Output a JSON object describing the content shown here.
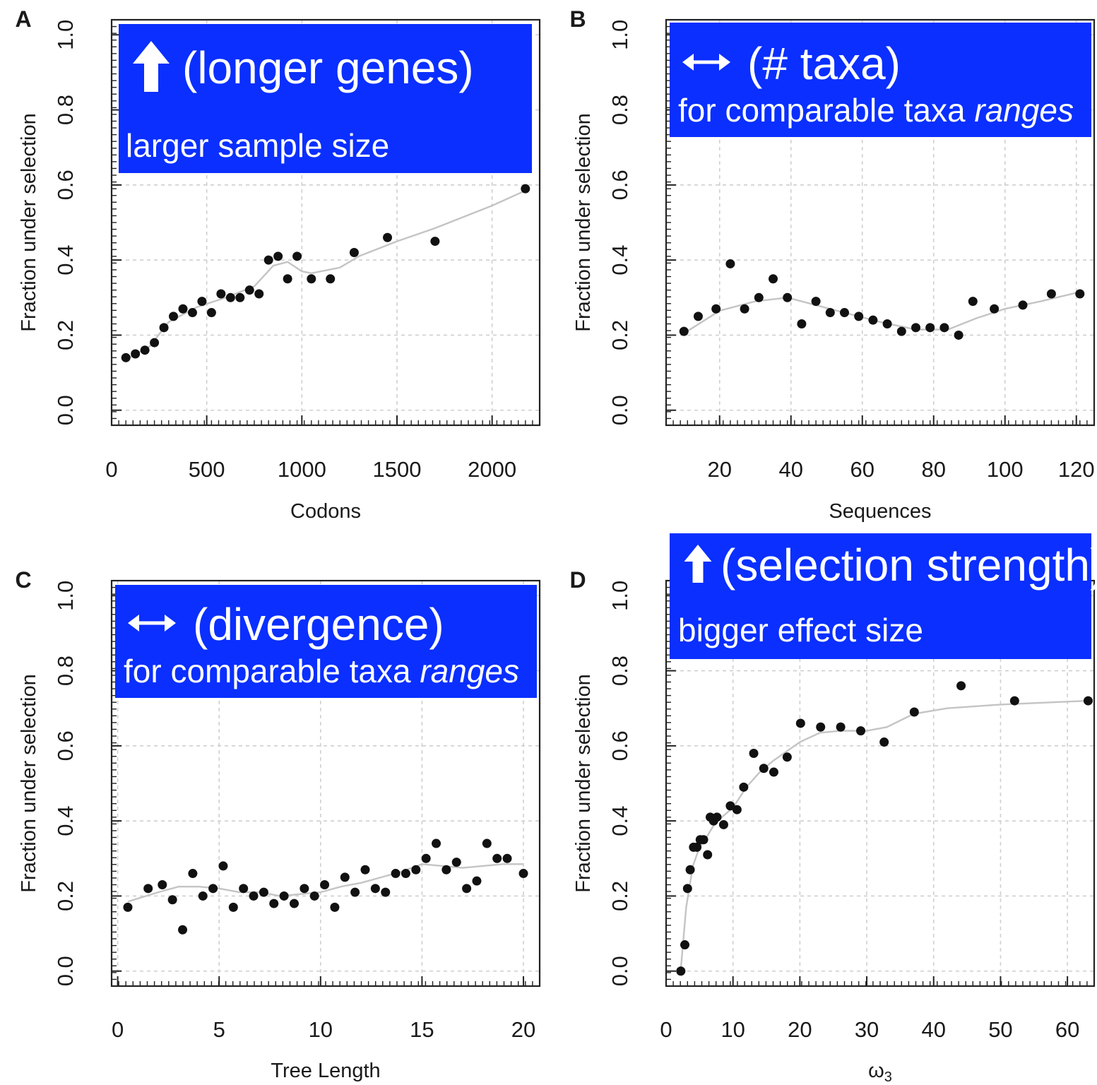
{
  "chart_data": [
    {
      "panel": "A",
      "type": "scatter",
      "xlabel": "Codons",
      "ylabel": "Fraction under selection",
      "xlim": [
        0,
        2250
      ],
      "ylim": [
        -0.04,
        1.04
      ],
      "xticks": [
        0,
        500,
        1000,
        1500,
        2000
      ],
      "yticks": [
        0.0,
        0.2,
        0.4,
        0.6,
        0.8,
        1.0
      ],
      "ytick_labels": [
        "0.0",
        "0.2",
        "0.4",
        "0.6",
        "0.8",
        "1.0"
      ],
      "grid": true,
      "banner": {
        "arrow": "up",
        "line1": "(longer genes)",
        "line2": "larger sample size",
        "color": "#0a2fff"
      },
      "points": [
        [
          75,
          0.14
        ],
        [
          125,
          0.15
        ],
        [
          175,
          0.16
        ],
        [
          225,
          0.18
        ],
        [
          275,
          0.22
        ],
        [
          325,
          0.25
        ],
        [
          375,
          0.27
        ],
        [
          425,
          0.26
        ],
        [
          475,
          0.29
        ],
        [
          525,
          0.26
        ],
        [
          575,
          0.31
        ],
        [
          625,
          0.3
        ],
        [
          675,
          0.3
        ],
        [
          725,
          0.32
        ],
        [
          775,
          0.31
        ],
        [
          825,
          0.4
        ],
        [
          875,
          0.41
        ],
        [
          925,
          0.35
        ],
        [
          975,
          0.41
        ],
        [
          1050,
          0.35
        ],
        [
          1150,
          0.35
        ],
        [
          1275,
          0.42
        ],
        [
          1450,
          0.46
        ],
        [
          1700,
          0.45
        ],
        [
          2175,
          0.59
        ]
      ],
      "smooth": [
        [
          75,
          0.135
        ],
        [
          200,
          0.17
        ],
        [
          300,
          0.235
        ],
        [
          450,
          0.275
        ],
        [
          600,
          0.3
        ],
        [
          750,
          0.33
        ],
        [
          850,
          0.385
        ],
        [
          925,
          0.395
        ],
        [
          1000,
          0.37
        ],
        [
          1050,
          0.365
        ],
        [
          1200,
          0.38
        ],
        [
          1300,
          0.41
        ],
        [
          1500,
          0.45
        ],
        [
          1700,
          0.485
        ],
        [
          2000,
          0.545
        ],
        [
          2175,
          0.585
        ]
      ]
    },
    {
      "panel": "B",
      "type": "scatter",
      "xlabel": "Sequences",
      "ylabel": "Fraction under selection",
      "xlim": [
        5,
        125
      ],
      "ylim": [
        -0.04,
        1.04
      ],
      "xticks": [
        20,
        40,
        60,
        80,
        100,
        120
      ],
      "yticks": [
        0.0,
        0.2,
        0.4,
        0.6,
        0.8,
        1.0
      ],
      "ytick_labels": [
        "0.0",
        "0.2",
        "0.4",
        "0.6",
        "0.8",
        "1.0"
      ],
      "grid": true,
      "banner": {
        "arrow": "both",
        "line1": "(# taxa)",
        "line2_plain": "for comparable taxa ",
        "line2_italic": "ranges",
        "color": "#0a2fff"
      },
      "points": [
        [
          10,
          0.21
        ],
        [
          14,
          0.25
        ],
        [
          19,
          0.27
        ],
        [
          23,
          0.39
        ],
        [
          27,
          0.27
        ],
        [
          31,
          0.3
        ],
        [
          35,
          0.35
        ],
        [
          39,
          0.3
        ],
        [
          43,
          0.23
        ],
        [
          47,
          0.29
        ],
        [
          51,
          0.26
        ],
        [
          55,
          0.26
        ],
        [
          59,
          0.25
        ],
        [
          63,
          0.24
        ],
        [
          67,
          0.23
        ],
        [
          71,
          0.21
        ],
        [
          75,
          0.22
        ],
        [
          79,
          0.22
        ],
        [
          83,
          0.22
        ],
        [
          87,
          0.2
        ],
        [
          91,
          0.29
        ],
        [
          97,
          0.27
        ],
        [
          105,
          0.28
        ],
        [
          113,
          0.31
        ],
        [
          121,
          0.31
        ]
      ],
      "smooth": [
        [
          10,
          0.205
        ],
        [
          20,
          0.265
        ],
        [
          30,
          0.29
        ],
        [
          39,
          0.3
        ],
        [
          45,
          0.285
        ],
        [
          55,
          0.26
        ],
        [
          65,
          0.235
        ],
        [
          75,
          0.215
        ],
        [
          84,
          0.215
        ],
        [
          92,
          0.245
        ],
        [
          100,
          0.27
        ],
        [
          110,
          0.29
        ],
        [
          121,
          0.315
        ]
      ]
    },
    {
      "panel": "C",
      "type": "scatter",
      "xlabel": "Tree Length",
      "ylabel": "Fraction under selection",
      "xlim": [
        -0.3,
        20.8
      ],
      "ylim": [
        -0.04,
        1.04
      ],
      "xticks": [
        0,
        5,
        10,
        15,
        20
      ],
      "yticks": [
        0.0,
        0.2,
        0.4,
        0.6,
        0.8,
        1.0
      ],
      "ytick_labels": [
        "0.0",
        "0.2",
        "0.4",
        "0.6",
        "0.8",
        "1.0"
      ],
      "grid": true,
      "banner": {
        "arrow": "both",
        "line1": "(divergence)",
        "line2_plain": "for comparable taxa ",
        "line2_italic": "ranges",
        "color": "#0a2fff"
      },
      "points": [
        [
          0.5,
          0.17
        ],
        [
          1.5,
          0.22
        ],
        [
          2.2,
          0.23
        ],
        [
          2.7,
          0.19
        ],
        [
          3.2,
          0.11
        ],
        [
          3.7,
          0.26
        ],
        [
          4.2,
          0.2
        ],
        [
          4.7,
          0.22
        ],
        [
          5.2,
          0.28
        ],
        [
          5.7,
          0.17
        ],
        [
          6.2,
          0.22
        ],
        [
          6.7,
          0.2
        ],
        [
          7.2,
          0.21
        ],
        [
          7.7,
          0.18
        ],
        [
          8.2,
          0.2
        ],
        [
          8.7,
          0.18
        ],
        [
          9.2,
          0.22
        ],
        [
          9.7,
          0.2
        ],
        [
          10.2,
          0.23
        ],
        [
          10.7,
          0.17
        ],
        [
          11.2,
          0.25
        ],
        [
          11.7,
          0.21
        ],
        [
          12.2,
          0.27
        ],
        [
          12.7,
          0.22
        ],
        [
          13.2,
          0.21
        ],
        [
          13.7,
          0.26
        ],
        [
          14.2,
          0.26
        ],
        [
          14.7,
          0.27
        ],
        [
          15.2,
          0.3
        ],
        [
          15.7,
          0.34
        ],
        [
          16.2,
          0.27
        ],
        [
          16.7,
          0.29
        ],
        [
          17.2,
          0.22
        ],
        [
          17.7,
          0.24
        ],
        [
          18.2,
          0.34
        ],
        [
          18.7,
          0.3
        ],
        [
          19.2,
          0.3
        ],
        [
          20.0,
          0.26
        ]
      ],
      "smooth": [
        [
          0.5,
          0.185
        ],
        [
          2,
          0.21
        ],
        [
          3,
          0.225
        ],
        [
          4,
          0.225
        ],
        [
          5,
          0.22
        ],
        [
          6,
          0.21
        ],
        [
          7,
          0.21
        ],
        [
          8,
          0.2
        ],
        [
          9,
          0.205
        ],
        [
          10,
          0.21
        ],
        [
          11,
          0.225
        ],
        [
          12,
          0.235
        ],
        [
          13,
          0.25
        ],
        [
          14,
          0.265
        ],
        [
          15,
          0.285
        ],
        [
          16,
          0.28
        ],
        [
          17,
          0.275
        ],
        [
          18,
          0.28
        ],
        [
          19,
          0.285
        ],
        [
          20,
          0.285
        ]
      ]
    },
    {
      "panel": "D",
      "type": "scatter",
      "xlabel": "ω3",
      "ylabel": "Fraction under selection",
      "xlim": [
        0,
        64
      ],
      "ylim": [
        -0.04,
        1.04
      ],
      "xticks": [
        0,
        10,
        20,
        30,
        40,
        50,
        60
      ],
      "yticks": [
        0.0,
        0.2,
        0.4,
        0.6,
        0.8,
        1.0
      ],
      "ytick_labels": [
        "0.0",
        "0.2",
        "0.4",
        "0.6",
        "0.8",
        "1.0"
      ],
      "grid": true,
      "banner": {
        "arrow": "up",
        "line1": "(selection strength)",
        "line2": "bigger effect size",
        "color": "#0a2fff"
      },
      "points": [
        [
          2.2,
          0.0
        ],
        [
          2.8,
          0.07
        ],
        [
          3.2,
          0.22
        ],
        [
          3.6,
          0.27
        ],
        [
          4.1,
          0.33
        ],
        [
          4.6,
          0.33
        ],
        [
          5.1,
          0.35
        ],
        [
          5.6,
          0.35
        ],
        [
          6.2,
          0.31
        ],
        [
          6.6,
          0.41
        ],
        [
          7.1,
          0.4
        ],
        [
          7.6,
          0.41
        ],
        [
          8.6,
          0.39
        ],
        [
          9.6,
          0.44
        ],
        [
          10.6,
          0.43
        ],
        [
          11.6,
          0.49
        ],
        [
          13.1,
          0.58
        ],
        [
          14.6,
          0.54
        ],
        [
          16.1,
          0.53
        ],
        [
          18.1,
          0.57
        ],
        [
          20.1,
          0.66
        ],
        [
          23.1,
          0.65
        ],
        [
          26.1,
          0.65
        ],
        [
          29.1,
          0.64
        ],
        [
          32.6,
          0.61
        ],
        [
          37.1,
          0.69
        ],
        [
          44.1,
          0.76
        ],
        [
          52.1,
          0.72
        ],
        [
          63.1,
          0.72
        ]
      ],
      "smooth": [
        [
          2.2,
          0.005
        ],
        [
          3,
          0.17
        ],
        [
          4,
          0.28
        ],
        [
          5,
          0.33
        ],
        [
          6,
          0.355
        ],
        [
          7,
          0.385
        ],
        [
          8,
          0.405
        ],
        [
          10,
          0.435
        ],
        [
          12,
          0.49
        ],
        [
          14,
          0.53
        ],
        [
          16,
          0.56
        ],
        [
          18,
          0.585
        ],
        [
          20,
          0.61
        ],
        [
          23,
          0.635
        ],
        [
          26,
          0.64
        ],
        [
          30,
          0.64
        ],
        [
          33,
          0.65
        ],
        [
          37,
          0.685
        ],
        [
          42,
          0.7
        ],
        [
          50,
          0.71
        ],
        [
          63,
          0.72
        ]
      ]
    }
  ]
}
